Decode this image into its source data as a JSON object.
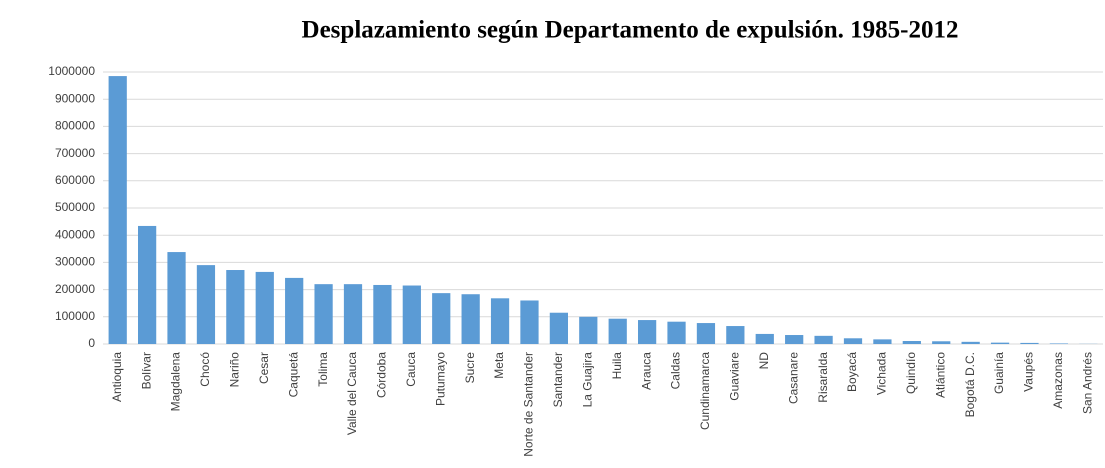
{
  "chart_data": {
    "type": "bar",
    "title": "Desplazamiento según Departamento de expulsión. 1985-2012",
    "categories": [
      "Antioquia",
      "Bolívar",
      "Magdalena",
      "Chocó",
      "Nariño",
      "Cesar",
      "Caquetá",
      "Tolima",
      "Valle del Cauca",
      "Córdoba",
      "Cauca",
      "Putumayo",
      "Sucre",
      "Meta",
      "Norte de Santander",
      "Santander",
      "La Guajira",
      "Huila",
      "Arauca",
      "Caldas",
      "Cundinamarca",
      "Guaviare",
      "ND",
      "Casanare",
      "Risaralda",
      "Boyacá",
      "Vichada",
      "Quindío",
      "Atlántico",
      "Bogotá D.C.",
      "Guainía",
      "Vaupés",
      "Amazonas",
      "San Andrés"
    ],
    "values": [
      985000,
      434000,
      338000,
      290000,
      272000,
      265000,
      243000,
      220000,
      220000,
      217000,
      215000,
      187000,
      183000,
      168000,
      160000,
      115000,
      100000,
      93000,
      88000,
      82000,
      77000,
      66000,
      37000,
      33000,
      30000,
      21000,
      17000,
      11000,
      10000,
      8000,
      5000,
      4000,
      2000,
      500
    ],
    "color": "#5b9bd5",
    "ylim": [
      0,
      1000000
    ],
    "yticks": [
      0,
      100000,
      200000,
      300000,
      400000,
      500000,
      600000,
      700000,
      800000,
      900000,
      1000000
    ],
    "grid": true
  }
}
